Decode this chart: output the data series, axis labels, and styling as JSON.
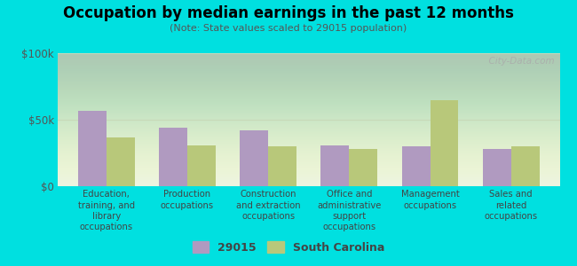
{
  "title": "Occupation by median earnings in the past 12 months",
  "subtitle": "(Note: State values scaled to 29015 population)",
  "background_color": "#00e0e0",
  "plot_bg_color": "#e8f2e0",
  "categories": [
    "Education,\ntraining, and\nlibrary\noccupations",
    "Production\noccupations",
    "Construction\nand extraction\noccupations",
    "Office and\nadministrative\nsupport\noccupations",
    "Management\noccupations",
    "Sales and\nrelated\noccupations"
  ],
  "values_29015": [
    57000,
    44000,
    42000,
    31000,
    30000,
    28000
  ],
  "values_sc": [
    37000,
    31000,
    30000,
    28000,
    65000,
    30000
  ],
  "color_29015": "#b09ac0",
  "color_sc": "#b8c87a",
  "ylim": [
    0,
    100000
  ],
  "ytick_labels": [
    "$0",
    "$50k",
    "$100k"
  ],
  "ytick_vals": [
    0,
    50000,
    100000
  ],
  "legend_labels": [
    "29015",
    "South Carolina"
  ],
  "watermark": "  City-Data.com",
  "grid_color": "#c8d8b8"
}
